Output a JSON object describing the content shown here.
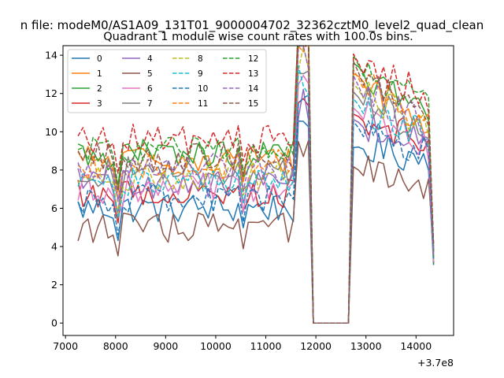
{
  "chart_data": {
    "type": "line",
    "suptitle": "n file: modeM0/AS1A09_131T01_9000004702_32362cztM0_level2_quad_clean",
    "title": "Quadrant 1 module wise count rates with 100.0s bins.",
    "xlabel": "",
    "ylabel": "",
    "x_offset_label": "+3.7e8",
    "xlim": [
      6950,
      14750
    ],
    "ylim": [
      -0.65,
      14.5
    ],
    "xticks": [
      7000,
      8000,
      9000,
      10000,
      11000,
      12000,
      13000,
      14000
    ],
    "yticks": [
      0,
      2,
      4,
      6,
      8,
      10,
      12,
      14
    ],
    "grid": false,
    "legend_position": "top-left",
    "x_start": 7250,
    "x_step": 100,
    "n_points": 72,
    "data_gap": {
      "from": 11800,
      "to": 12700,
      "value": 0
    },
    "series": [
      {
        "name": "0",
        "color": "#1f77b4",
        "dash": "solid",
        "base_pre": 6.0,
        "base_post": 8.6,
        "peak": 9.2
      },
      {
        "name": "1",
        "color": "#ff7f0e",
        "dash": "solid",
        "base_pre": 8.5,
        "base_post": 10.3,
        "peak": 12.9
      },
      {
        "name": "2",
        "color": "#2ca02c",
        "dash": "solid",
        "base_pre": 8.8,
        "base_post": 10.6,
        "peak": 13.4
      },
      {
        "name": "3",
        "color": "#d62728",
        "dash": "solid",
        "base_pre": 6.8,
        "base_post": 9.4,
        "peak": 10.8
      },
      {
        "name": "4",
        "color": "#9467bd",
        "dash": "solid",
        "base_pre": 7.3,
        "base_post": 9.2,
        "peak": 10.5
      },
      {
        "name": "5",
        "color": "#8c564b",
        "dash": "solid",
        "base_pre": 5.0,
        "base_post": 6.8,
        "peak": 8.0
      },
      {
        "name": "6",
        "color": "#e377c2",
        "dash": "solid",
        "base_pre": 7.0,
        "base_post": 9.3,
        "peak": 11.0
      },
      {
        "name": "7",
        "color": "#7f7f7f",
        "dash": "solid",
        "base_pre": 7.9,
        "base_post": 9.8,
        "peak": 11.8
      },
      {
        "name": "8",
        "color": "#bcbd22",
        "dash": "dashed",
        "base_pre": 7.7,
        "base_post": 10.0,
        "peak": 12.2
      },
      {
        "name": "9",
        "color": "#17becf",
        "dash": "dashed",
        "base_pre": 7.4,
        "base_post": 9.6,
        "peak": 11.4
      },
      {
        "name": "10",
        "color": "#1f77b4",
        "dash": "dashed",
        "base_pre": 6.5,
        "base_post": 8.8,
        "peak": 10.2
      },
      {
        "name": "11",
        "color": "#ff7f0e",
        "dash": "dashed",
        "base_pre": 8.3,
        "base_post": 10.4,
        "peak": 12.8
      },
      {
        "name": "12",
        "color": "#2ca02c",
        "dash": "dashed",
        "base_pre": 9.0,
        "base_post": 11.0,
        "peak": 13.5
      },
      {
        "name": "13",
        "color": "#d62728",
        "dash": "dashed",
        "base_pre": 9.6,
        "base_post": 11.8,
        "peak": 13.6
      },
      {
        "name": "14",
        "color": "#9467bd",
        "dash": "dashed",
        "base_pre": 8.1,
        "base_post": 10.1,
        "peak": 12.4
      },
      {
        "name": "15",
        "color": "#8c564b",
        "dash": "dashed",
        "base_pre": 8.6,
        "base_post": 10.5,
        "peak": 13.1
      }
    ]
  }
}
